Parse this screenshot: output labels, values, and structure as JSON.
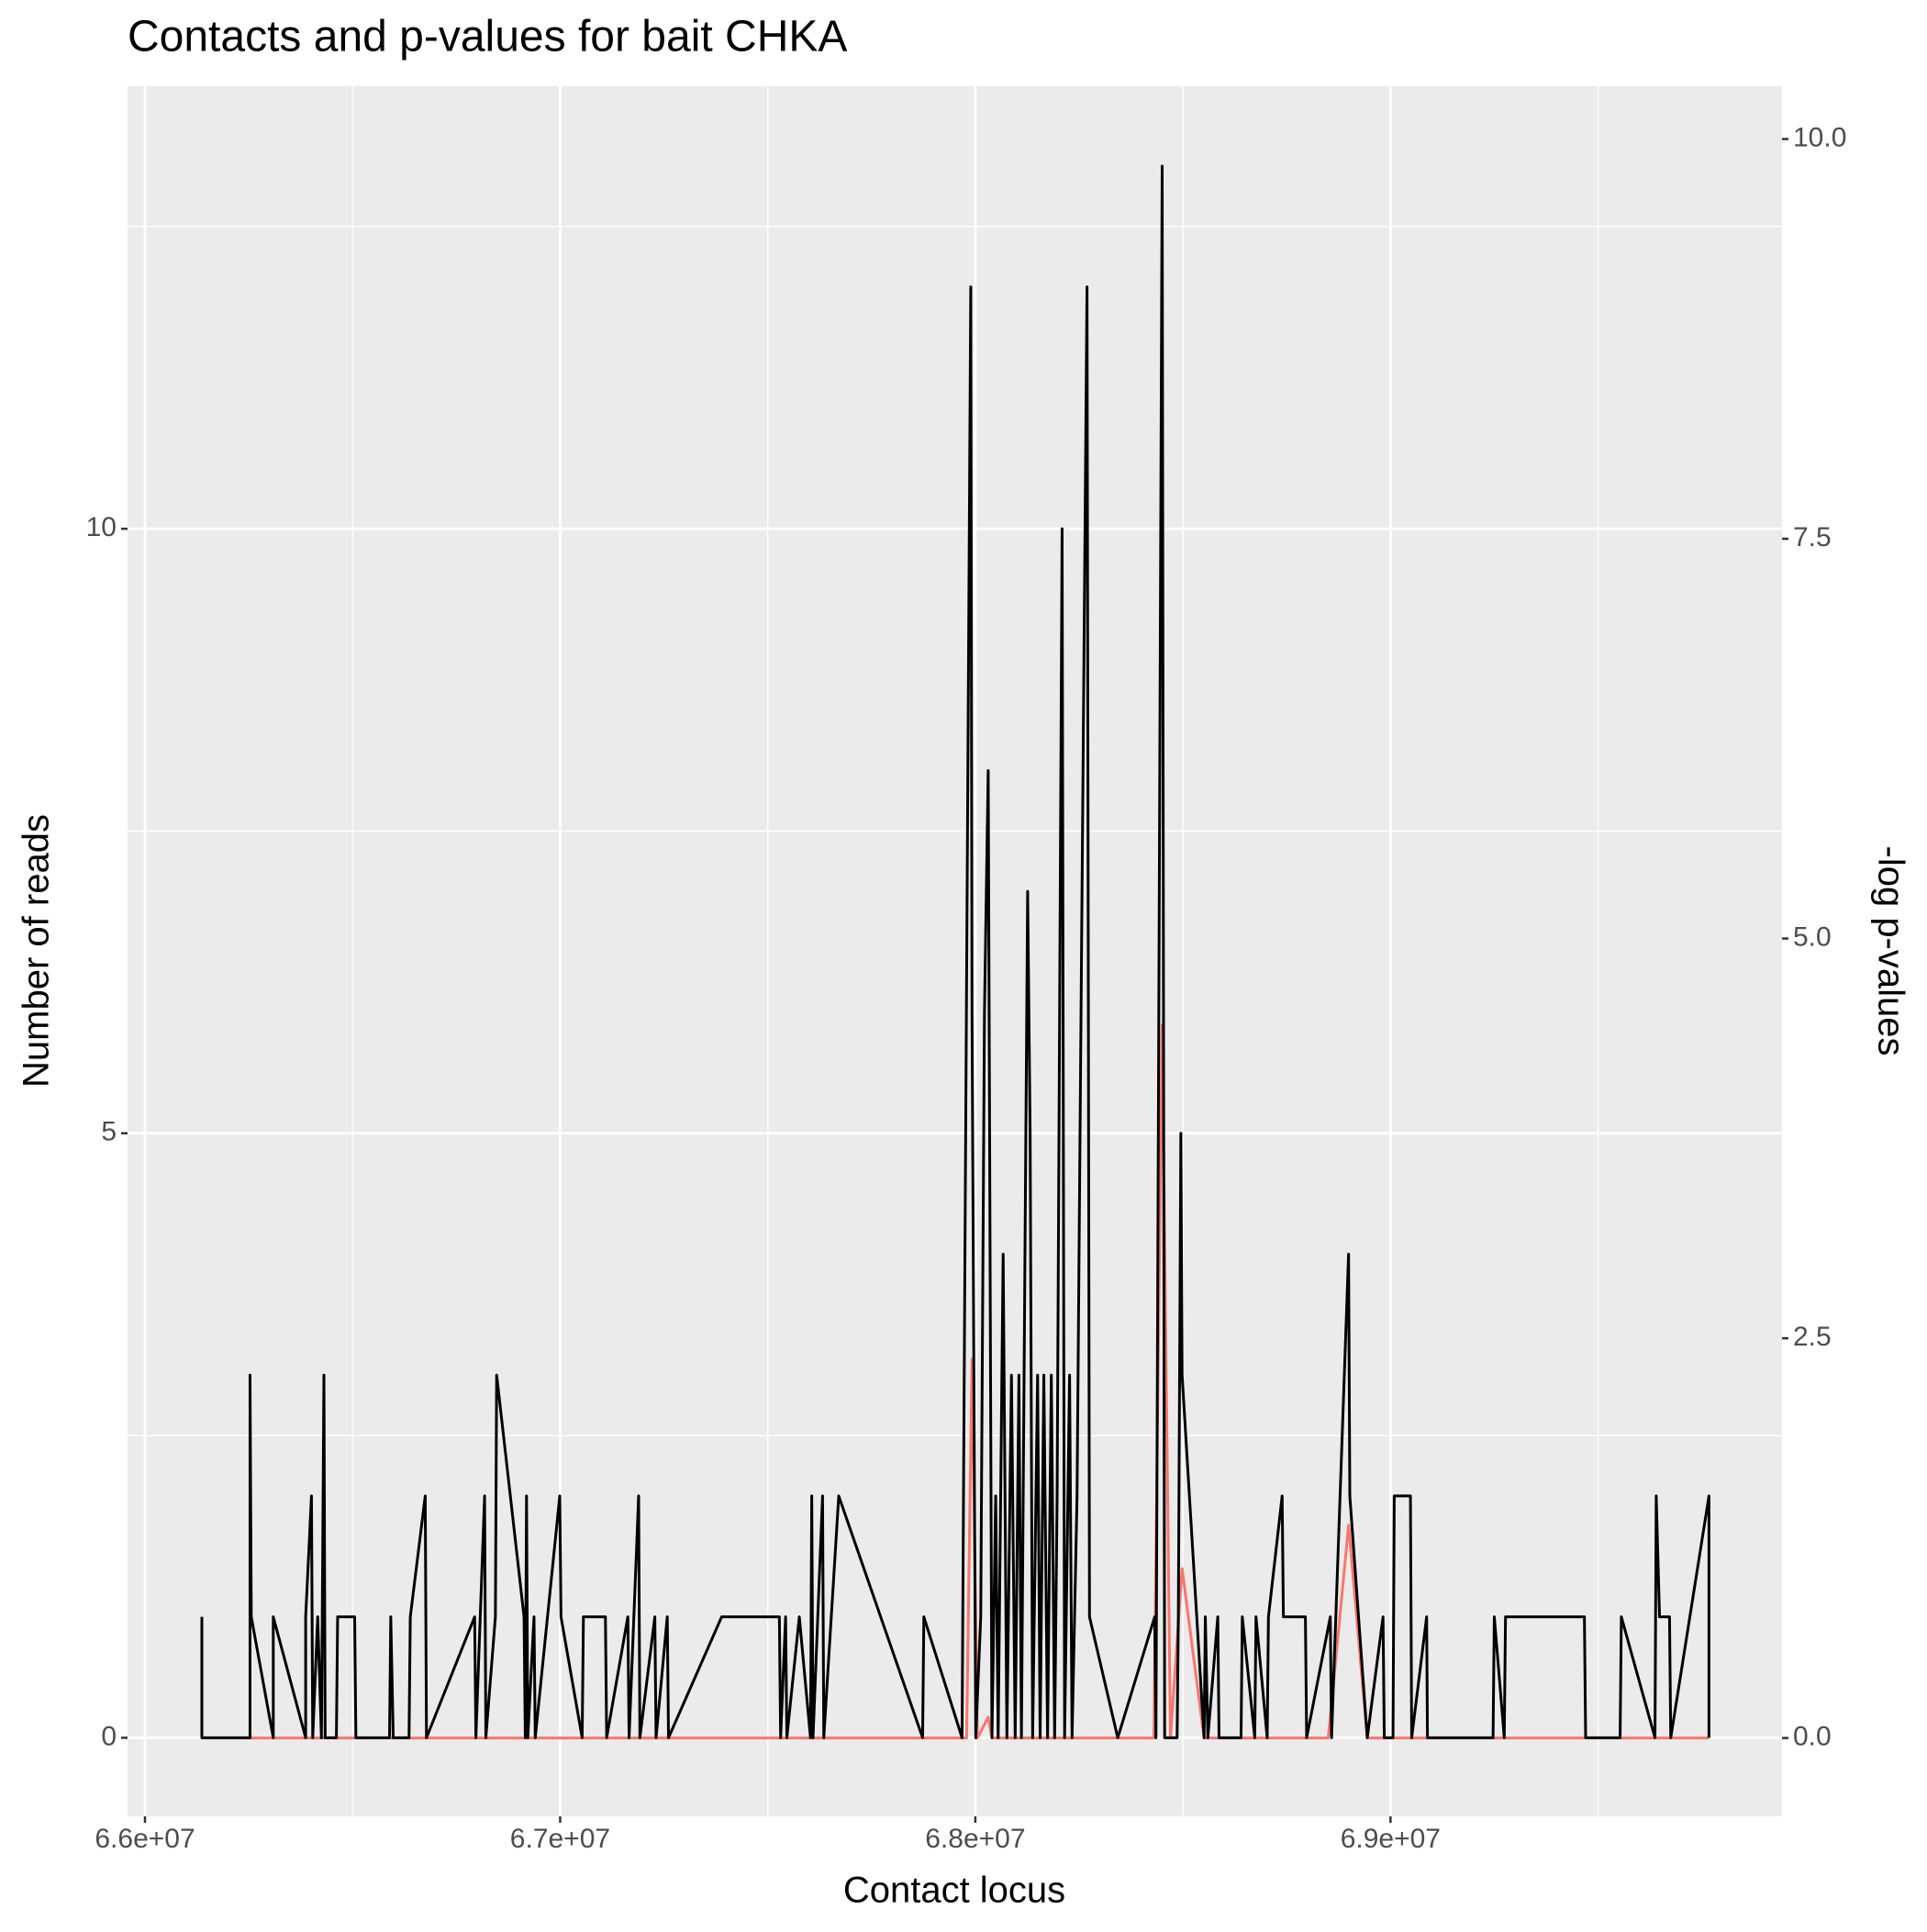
{
  "chart_data": {
    "type": "line",
    "title": "Contacts and p-values for bait CHKA",
    "x_label": "Contact locus",
    "y_label": "Number of reads",
    "y2_label": "-log p-values",
    "xlim": [
      65958000,
      69943000
    ],
    "ylim": [
      -0.65,
      13.66
    ],
    "y2lim": [
      -0.49,
      10.33
    ],
    "xticks": [
      {
        "value": 66000000,
        "label": "6.6e+07"
      },
      {
        "value": 67000000,
        "label": "6.7e+07"
      },
      {
        "value": 68000000,
        "label": "6.8e+07"
      },
      {
        "value": 69000000,
        "label": "6.9e+07"
      }
    ],
    "yticks": [
      0,
      5,
      10
    ],
    "y2ticks": [
      {
        "value": 0,
        "label": "0.0"
      },
      {
        "value": 2.5,
        "label": "2.5"
      },
      {
        "value": 5,
        "label": "5.0"
      },
      {
        "value": 7.5,
        "label": "7.5"
      },
      {
        "value": 10,
        "label": "10.0"
      }
    ],
    "grid": true,
    "series": [
      {
        "name": "Number of reads",
        "color": "#000000",
        "axis": "y",
        "x": [
          66137000,
          66137000,
          66253000,
          66253000,
          66256000,
          66309000,
          66309000,
          66387000,
          66387000,
          66401000,
          66404000,
          66416000,
          66425000,
          66431000,
          66434000,
          66461000,
          66464000,
          66505000,
          66508000,
          66589000,
          66592000,
          66598000,
          66636000,
          66639000,
          66675000,
          66678000,
          66794000,
          66797000,
          66818000,
          66821000,
          66844000,
          66847000,
          66913000,
          66916000,
          66919000,
          66922000,
          66937000,
          66940000,
          66999000,
          67002000,
          67053000,
          67056000,
          67109000,
          67112000,
          67163000,
          67166000,
          67189000,
          67192000,
          67228000,
          67231000,
          67258000,
          67261000,
          67389000,
          67478000,
          67528000,
          67531000,
          67543000,
          67546000,
          67576000,
          67603000,
          67606000,
          67609000,
          67632000,
          67635000,
          67671000,
          67873000,
          67876000,
          67968000,
          67989000,
          67992000,
          68001000,
          68013000,
          68022000,
          68031000,
          68040000,
          68049000,
          68055000,
          68067000,
          68076000,
          68087000,
          68096000,
          68105000,
          68111000,
          68126000,
          68132000,
          68138000,
          68150000,
          68156000,
          68165000,
          68174000,
          68183000,
          68191000,
          68197000,
          68209000,
          68215000,
          68227000,
          68233000,
          68245000,
          68269000,
          68275000,
          68343000,
          68432000,
          68435000,
          68450000,
          68456000,
          68486000,
          68489000,
          68495000,
          68498000,
          68551000,
          68554000,
          68560000,
          68584000,
          68587000,
          68640000,
          68643000,
          68673000,
          68676000,
          68703000,
          68706000,
          68739000,
          68742000,
          68795000,
          68798000,
          68855000,
          68858000,
          68899000,
          68902000,
          68944000,
          68982000,
          68985000,
          69006000,
          69009000,
          69048000,
          69051000,
          69087000,
          69089000,
          69247000,
          69250000,
          69274000,
          69277000,
          69467000,
          69470000,
          69553000,
          69556000,
          69637000,
          69640000,
          69648000,
          69672000,
          69675000,
          69767000,
          69767000
        ],
        "values": [
          1,
          0,
          0,
          3,
          1,
          0,
          1,
          0,
          1,
          2,
          0,
          1,
          0,
          3,
          0,
          0,
          1,
          1,
          0,
          0,
          1,
          0,
          0,
          1,
          2,
          0,
          1,
          0,
          2,
          0,
          1,
          3,
          1,
          0,
          2,
          0,
          1,
          0,
          2,
          1,
          0,
          1,
          1,
          0,
          1,
          0,
          2,
          0,
          1,
          0,
          1,
          0,
          1,
          1,
          1,
          0,
          1,
          0,
          1,
          0,
          2,
          0,
          2,
          0,
          2,
          0,
          1,
          0,
          12,
          6,
          0,
          1,
          6,
          8,
          0,
          2,
          0,
          4,
          0,
          3,
          0,
          3,
          0,
          7,
          5,
          0,
          3,
          0,
          3,
          0,
          3,
          0,
          2,
          10,
          0,
          3,
          0,
          2,
          12,
          1,
          0,
          1,
          0,
          13,
          0,
          0,
          1,
          5,
          3,
          0,
          1,
          0,
          1,
          0,
          0,
          1,
          0,
          1,
          0,
          1,
          2,
          1,
          1,
          0,
          1,
          0,
          4,
          2,
          0,
          1,
          0,
          0,
          2,
          2,
          0,
          1,
          0,
          0,
          1,
          0,
          1,
          1,
          0,
          0,
          1,
          0,
          2,
          1,
          1,
          0,
          2,
          0
        ]
      },
      {
        "name": "-log p-values",
        "color": "#f8766d",
        "axis": "y2",
        "x": [
          66137000,
          67979000,
          67992000,
          68005000,
          68031000,
          68040000,
          68430000,
          68450000,
          68470000,
          68498000,
          68551000,
          68850000,
          68899000,
          68944000,
          69767000
        ],
        "values": [
          0,
          0,
          2.37,
          0,
          0.13,
          0,
          0,
          4.46,
          0,
          1.06,
          0,
          0,
          1.33,
          0,
          0
        ]
      }
    ]
  }
}
